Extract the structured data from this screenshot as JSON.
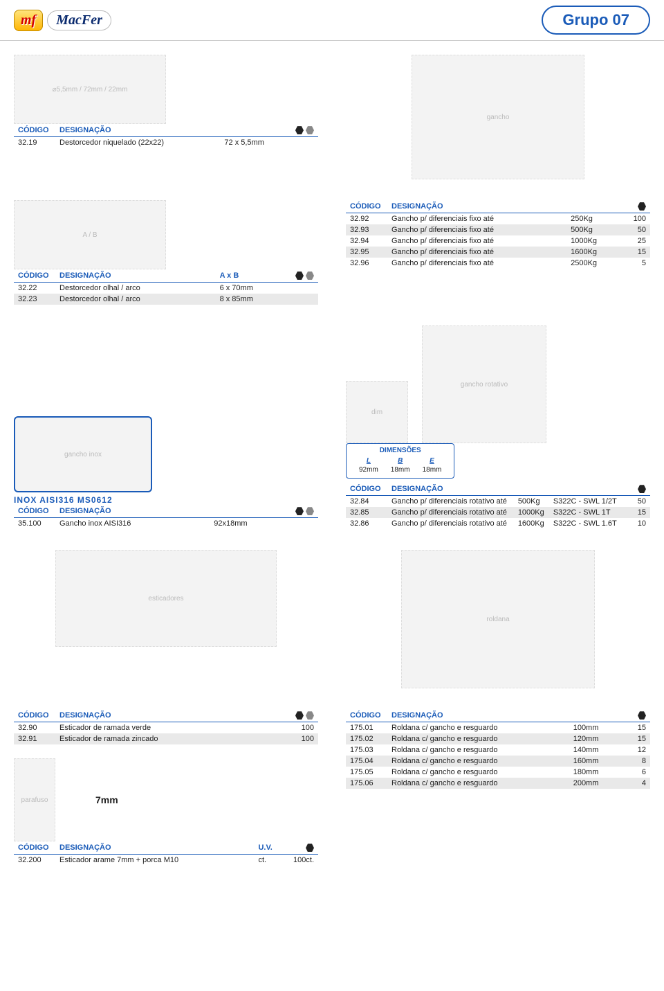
{
  "header": {
    "logo_mf": "mf",
    "logo_macfer": "MacFer",
    "grupo": "Grupo 07"
  },
  "labels": {
    "codigo": "CÓDIGO",
    "designacao": "DESIGNAÇÃO",
    "axb": "A x B",
    "dimensoes": "DIMENSÕES",
    "uv": "U.V."
  },
  "destorcedor_niq": {
    "rows": [
      {
        "code": "32.19",
        "desc": "Destorcedor niquelado (22x22)",
        "size": "72 x 5,5mm"
      }
    ]
  },
  "gancho_fixo": {
    "rows": [
      {
        "code": "32.92",
        "desc": "Gancho p/ diferenciais fixo até",
        "cap": "250Kg",
        "qty": "100"
      },
      {
        "code": "32.93",
        "desc": "Gancho p/ diferenciais fixo até",
        "cap": "500Kg",
        "qty": "50"
      },
      {
        "code": "32.94",
        "desc": "Gancho p/ diferenciais fixo até",
        "cap": "1000Kg",
        "qty": "25"
      },
      {
        "code": "32.95",
        "desc": "Gancho p/ diferenciais fixo até",
        "cap": "1600Kg",
        "qty": "15"
      },
      {
        "code": "32.96",
        "desc": "Gancho p/ diferenciais fixo até",
        "cap": "2500Kg",
        "qty": "5"
      }
    ]
  },
  "destorcedor_olhal": {
    "rows": [
      {
        "code": "32.22",
        "desc": "Destorcedor olhal / arco",
        "size": "6 x 70mm"
      },
      {
        "code": "32.23",
        "desc": "Destorcedor olhal / arco",
        "size": "8 x 85mm"
      }
    ]
  },
  "inox_label": "INOX AISI316 MS0612",
  "dim_inox": {
    "L": "92mm",
    "B": "18mm",
    "E": "18mm",
    "L_h": "L",
    "B_h": "B",
    "E_h": "E"
  },
  "gancho_inox": {
    "rows": [
      {
        "code": "35.100",
        "desc": "Gancho inox AISI316",
        "size": "92x18mm"
      }
    ]
  },
  "gancho_rot": {
    "rows": [
      {
        "code": "32.84",
        "desc": "Gancho p/ diferenciais rotativo até",
        "cap": "500Kg",
        "spec": "S322C - SWL 1/2T",
        "qty": "50"
      },
      {
        "code": "32.85",
        "desc": "Gancho p/ diferenciais rotativo até",
        "cap": "1000Kg",
        "spec": "S322C - SWL 1T",
        "qty": "15"
      },
      {
        "code": "32.86",
        "desc": "Gancho p/ diferenciais rotativo até",
        "cap": "1600Kg",
        "spec": "S322C - SWL 1.6T",
        "qty": "10"
      }
    ]
  },
  "esticador": {
    "rows": [
      {
        "code": "32.90",
        "desc": "Esticador de ramada verde",
        "qty": "100"
      },
      {
        "code": "32.91",
        "desc": "Esticador de ramada zincado",
        "qty": "100"
      }
    ]
  },
  "roldana": {
    "rows": [
      {
        "code": "175.01",
        "desc": "Roldana c/ gancho e resguardo",
        "size": "100mm",
        "qty": "15"
      },
      {
        "code": "175.02",
        "desc": "Roldana c/ gancho e resguardo",
        "size": "120mm",
        "qty": "15"
      },
      {
        "code": "175.03",
        "desc": "Roldana c/ gancho e resguardo",
        "size": "140mm",
        "qty": "12"
      },
      {
        "code": "175.04",
        "desc": "Roldana c/ gancho e resguardo",
        "size": "160mm",
        "qty": "8"
      },
      {
        "code": "175.05",
        "desc": "Roldana c/ gancho e resguardo",
        "size": "180mm",
        "qty": "6"
      },
      {
        "code": "175.06",
        "desc": "Roldana c/ gancho e resguardo",
        "size": "200mm",
        "qty": "4"
      }
    ]
  },
  "label_7mm": "7mm",
  "esticador_arame": {
    "rows": [
      {
        "code": "32.200",
        "desc": "Esticador arame 7mm + porca M10",
        "uv": "ct.",
        "qty": "100ct."
      }
    ]
  }
}
